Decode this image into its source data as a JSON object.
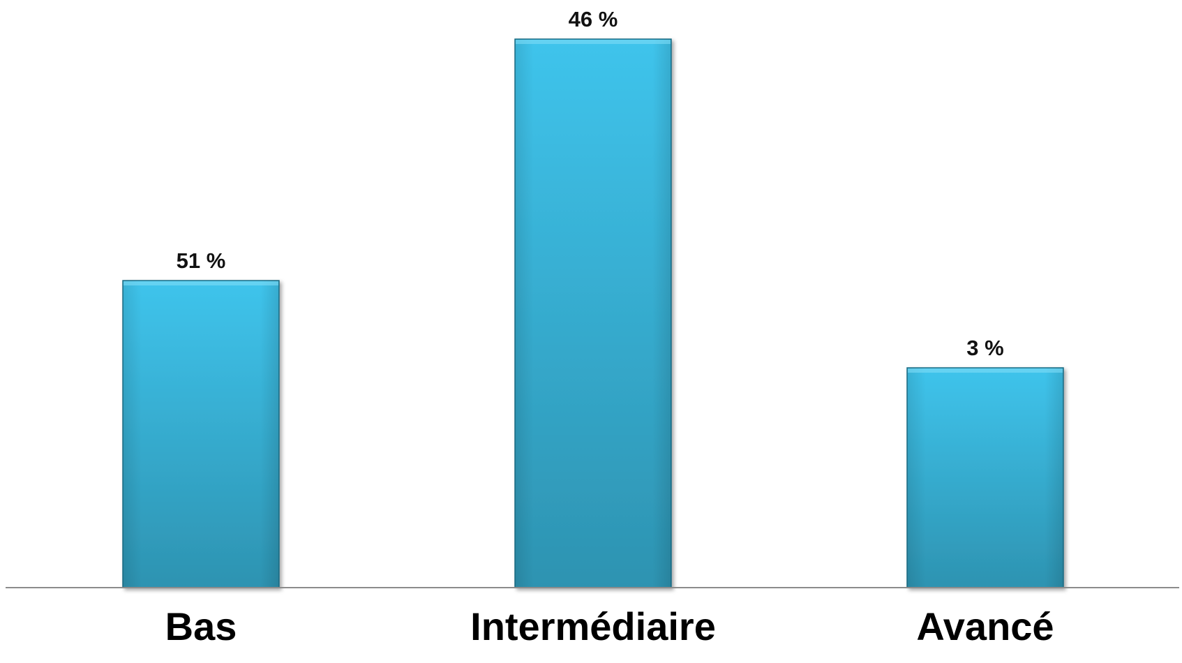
{
  "chart_data": {
    "type": "bar",
    "categories": [
      "Bas",
      "Intermédiaire",
      "Avancé"
    ],
    "value_labels": [
      "51 %",
      "46 %",
      "3 %"
    ],
    "grid": false,
    "legend": "none",
    "colors": {
      "bar_top": "#3fc4ec",
      "bar_bottom": "#2d93b1",
      "bar_edge": "#1e6f88",
      "baseline": "#8c8c8c"
    }
  }
}
